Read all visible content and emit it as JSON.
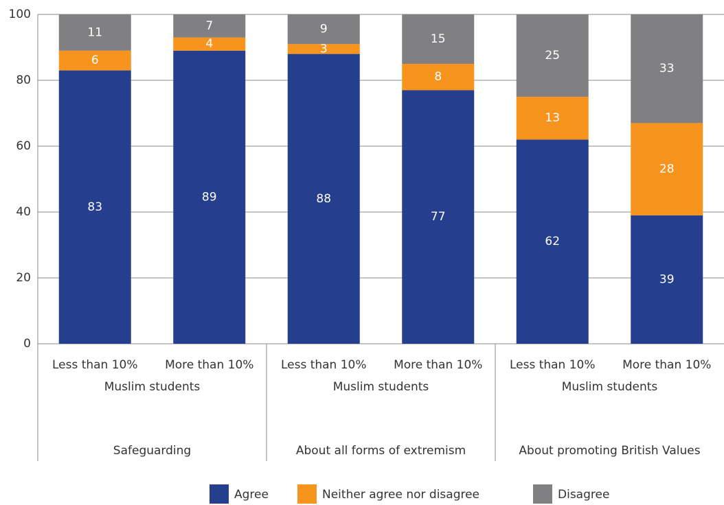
{
  "chart_data": {
    "type": "stacked_bar",
    "categories": [
      "Less than 10%",
      "More than 10%",
      "Less than 10%",
      "More than 10%",
      "Less than 10%",
      "More than 10%"
    ],
    "groups": [
      {
        "name": "Safeguarding",
        "sublabel": "Muslim students"
      },
      {
        "name": "About all forms of extremism",
        "sublabel": "Muslim students"
      },
      {
        "name": "About promoting British Values",
        "sublabel": "Muslim students"
      }
    ],
    "series": [
      {
        "name": "Agree",
        "color": "#253f8e",
        "values": [
          83,
          89,
          88,
          77,
          62,
          39
        ]
      },
      {
        "name": "Neither agree nor disagree",
        "color": "#f7941d",
        "values": [
          6,
          4,
          3,
          8,
          13,
          28
        ]
      },
      {
        "name": "Disagree",
        "color": "#808083",
        "values": [
          11,
          7,
          9,
          15,
          25,
          33
        ]
      }
    ],
    "ylim": [
      0,
      100
    ],
    "yticks": [
      0,
      20,
      40,
      60,
      80,
      100
    ],
    "grid": true,
    "legend": "bottom"
  }
}
